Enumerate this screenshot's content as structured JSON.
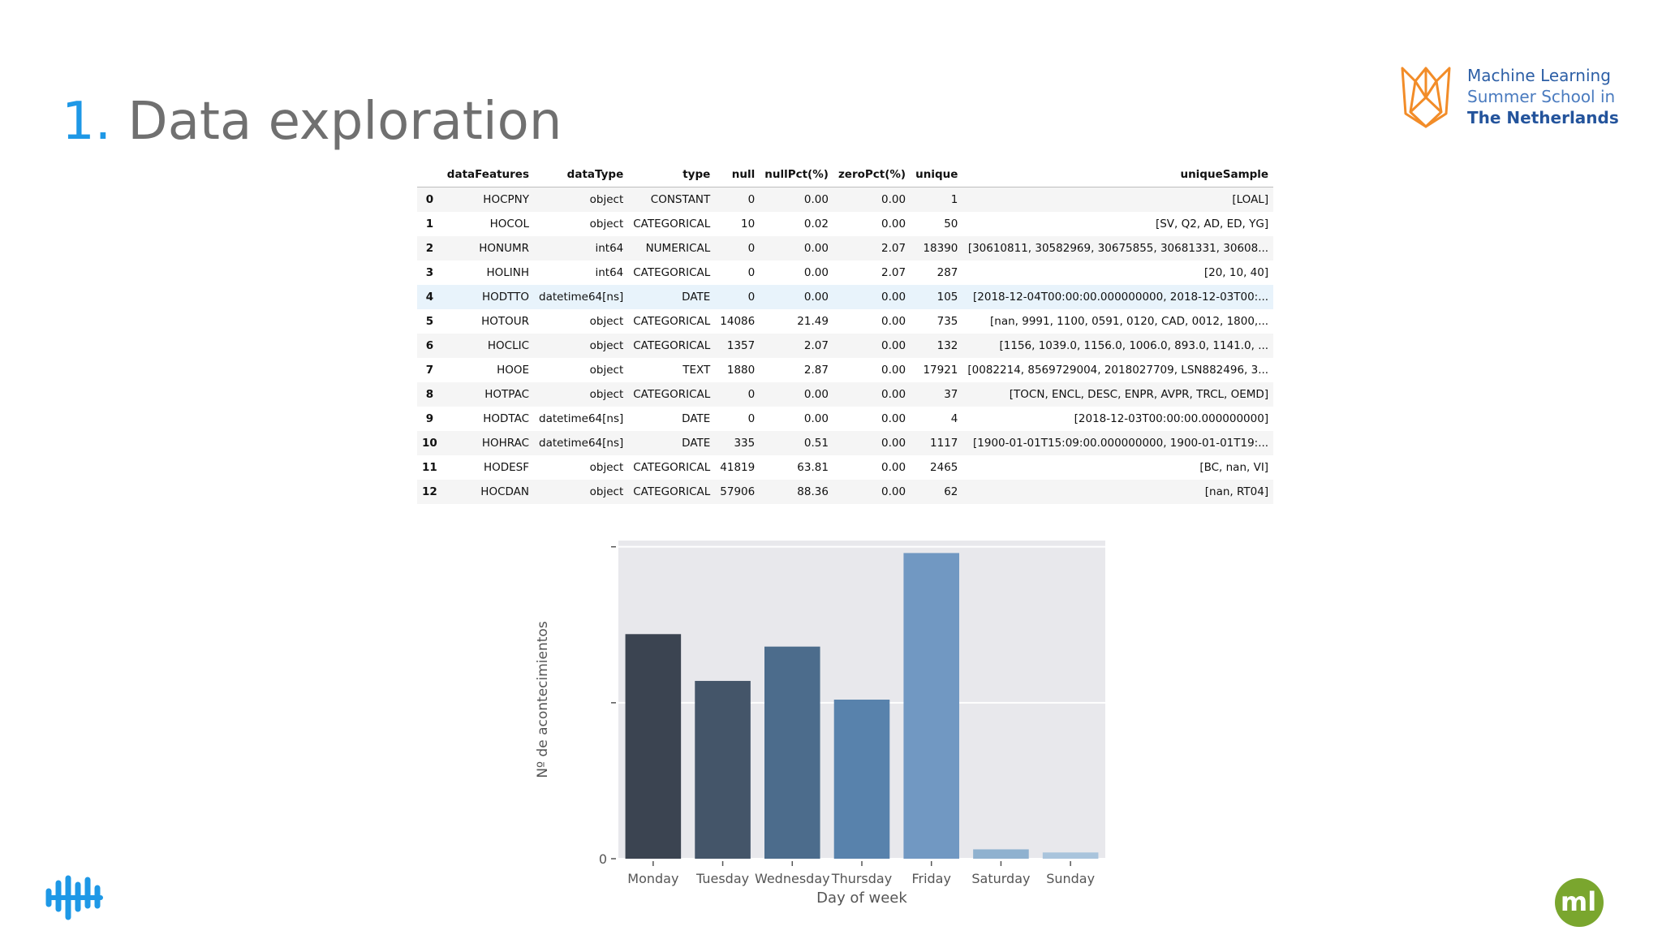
{
  "slide": {
    "title_number": "1.",
    "title_text": "Data exploration"
  },
  "logos": {
    "mlss": {
      "line1": "Machine Learning",
      "line2": "Summer School in",
      "line3": "The  Netherlands",
      "color": "#f28c28"
    },
    "ml_badge": {
      "text": "ml",
      "color": "#7aa62e"
    },
    "left_icon": "audio-wave-icon"
  },
  "table": {
    "columns": [
      "",
      "dataFeatures",
      "dataType",
      "type",
      "null",
      "nullPct(%)",
      "zeroPct(%)",
      "unique",
      "uniqueSample"
    ],
    "rows": [
      [
        "0",
        "HOCPNY",
        "object",
        "CONSTANT",
        "0",
        "0.00",
        "0.00",
        "1",
        "[LOAL]"
      ],
      [
        "1",
        "HOCOL",
        "object",
        "CATEGORICAL",
        "10",
        "0.02",
        "0.00",
        "50",
        "[SV, Q2, AD, ED, YG]"
      ],
      [
        "2",
        "HONUMR",
        "int64",
        "NUMERICAL",
        "0",
        "0.00",
        "2.07",
        "18390",
        "[30610811, 30582969, 30675855, 30681331, 30608..."
      ],
      [
        "3",
        "HOLINH",
        "int64",
        "CATEGORICAL",
        "0",
        "0.00",
        "2.07",
        "287",
        "[20, 10, 40]"
      ],
      [
        "4",
        "HODTTO",
        "datetime64[ns]",
        "DATE",
        "0",
        "0.00",
        "0.00",
        "105",
        "[2018-12-04T00:00:00.000000000, 2018-12-03T00:..."
      ],
      [
        "5",
        "HOTOUR",
        "object",
        "CATEGORICAL",
        "14086",
        "21.49",
        "0.00",
        "735",
        "[nan, 9991, 1100, 0591, 0120, CAD, 0012, 1800,..."
      ],
      [
        "6",
        "HOCLIC",
        "object",
        "CATEGORICAL",
        "1357",
        "2.07",
        "0.00",
        "132",
        "[1156, 1039.0, 1156.0, 1006.0, 893.0, 1141.0, ..."
      ],
      [
        "7",
        "HOOE",
        "object",
        "TEXT",
        "1880",
        "2.87",
        "0.00",
        "17921",
        "[0082214, 8569729004, 2018027709, LSN882496, 3..."
      ],
      [
        "8",
        "HOTPAC",
        "object",
        "CATEGORICAL",
        "0",
        "0.00",
        "0.00",
        "37",
        "[TOCN, ENCL, DESC, ENPR, AVPR, TRCL, OEMD]"
      ],
      [
        "9",
        "HODTAC",
        "datetime64[ns]",
        "DATE",
        "0",
        "0.00",
        "0.00",
        "4",
        "[2018-12-03T00:00:00.000000000]"
      ],
      [
        "10",
        "HOHRAC",
        "datetime64[ns]",
        "DATE",
        "335",
        "0.51",
        "0.00",
        "1117",
        "[1900-01-01T15:09:00.000000000, 1900-01-01T19:..."
      ],
      [
        "11",
        "HODESF",
        "object",
        "CATEGORICAL",
        "41819",
        "63.81",
        "0.00",
        "2465",
        "[BC, nan, VI]"
      ],
      [
        "12",
        "HOCDAN",
        "object",
        "CATEGORICAL",
        "57906",
        "88.36",
        "0.00",
        "62",
        "[nan, RT04]"
      ]
    ],
    "highlighted_row": 4
  },
  "chart_data": {
    "type": "bar",
    "xlabel": "Day of week",
    "ylabel": "Nº de acontecimientos",
    "categories": [
      "Monday",
      "Tuesday",
      "Wednesday",
      "Thursday",
      "Friday",
      "Saturday",
      "Sunday"
    ],
    "values": [
      0.72,
      0.57,
      0.68,
      0.51,
      0.98,
      0.03,
      0.02
    ],
    "ylim": [
      0,
      1.02
    ],
    "yticks": [
      {
        "value": 0,
        "label": "0"
      },
      {
        "value": 0.5,
        "label": ""
      },
      {
        "value": 1.0,
        "label": ""
      }
    ],
    "colors": [
      "#3b4451",
      "#445569",
      "#4c6c8c",
      "#5882ac",
      "#7198c2",
      "#8fb1cf",
      "#a9c4dc"
    ],
    "background": "#e8e8ec",
    "grid": true
  }
}
